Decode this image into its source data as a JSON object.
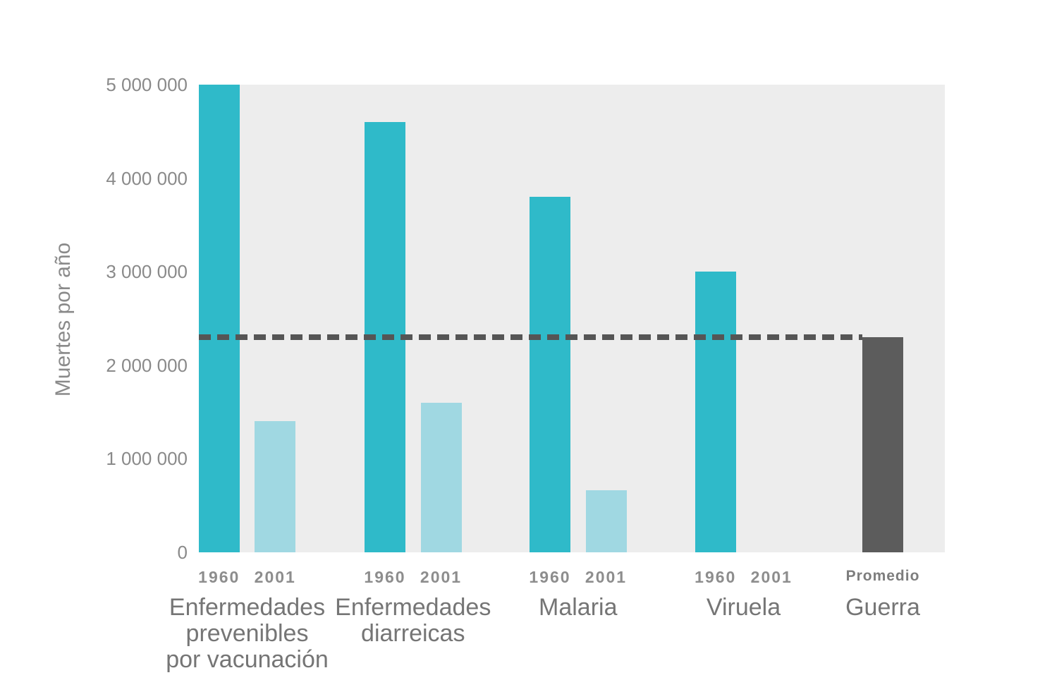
{
  "chart_data": {
    "type": "bar",
    "title": "",
    "xlabel": "",
    "ylabel": "Muertes por año",
    "ylim": [
      0,
      5000000
    ],
    "grid": false,
    "legend": false,
    "plot_background": "#ededed",
    "yticks": [
      {
        "value": 0,
        "label": "0"
      },
      {
        "value": 1000000,
        "label": "1 000 000"
      },
      {
        "value": 2000000,
        "label": "2 000 000"
      },
      {
        "value": 3000000,
        "label": "3 000 000"
      },
      {
        "value": 4000000,
        "label": "4 000 000"
      },
      {
        "value": 5000000,
        "label": "5 000 000"
      }
    ],
    "colors": {
      "teal": "#2fbac9",
      "teal_light": "#a0d8e2",
      "dark_gray": "#5c5c5c"
    },
    "groups": [
      {
        "category_label": "Enfermedades prevenibles por vacunación",
        "category_lines": [
          "Enfermedades",
          "prevenibles",
          "por vacunación"
        ],
        "bars": [
          {
            "tick": "1960",
            "value": 5000000,
            "color": "teal"
          },
          {
            "tick": "2001",
            "value": 1400000,
            "color": "teal_light"
          }
        ]
      },
      {
        "category_label": "Enfermedades diarreicas",
        "category_lines": [
          "Enfermedades",
          "diarreicas"
        ],
        "bars": [
          {
            "tick": "1960",
            "value": 4600000,
            "color": "teal"
          },
          {
            "tick": "2001",
            "value": 1600000,
            "color": "teal_light"
          }
        ]
      },
      {
        "category_label": "Malaria",
        "category_lines": [
          "Malaria"
        ],
        "bars": [
          {
            "tick": "1960",
            "value": 3800000,
            "color": "teal"
          },
          {
            "tick": "2001",
            "value": 660000,
            "color": "teal_light"
          }
        ]
      },
      {
        "category_label": "Viruela",
        "category_lines": [
          "Viruela"
        ],
        "bars": [
          {
            "tick": "1960",
            "value": 3000000,
            "color": "teal"
          },
          {
            "tick": "2001",
            "value": 0,
            "color": "teal_light"
          }
        ]
      },
      {
        "category_label": "Guerra",
        "category_lines": [
          "Guerra"
        ],
        "bars": [
          {
            "tick": "Promedio",
            "value": 2300000,
            "color": "dark_gray",
            "textured": true,
            "tick_style": "small"
          }
        ]
      }
    ],
    "reference_line": {
      "value": 2300000,
      "style": "dashed",
      "color": "#555555"
    }
  }
}
